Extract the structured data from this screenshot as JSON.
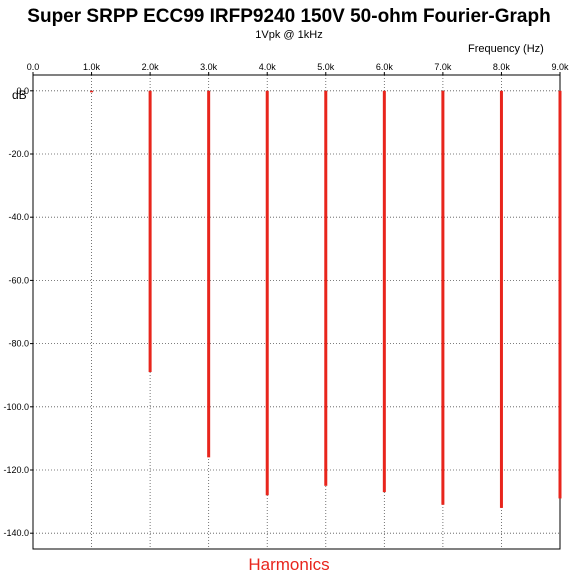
{
  "chart_data": {
    "type": "bar",
    "title": "Super SRPP ECC99 IRFP9240 150V 50-ohm Fourier-Graph",
    "subtitle": "1Vpk @ 1kHz",
    "xlabel": "Frequency  (Hz)",
    "ylabel": "dB",
    "footer": "Harmonics",
    "xlim": [
      0,
      9000
    ],
    "ylim": [
      -145,
      5
    ],
    "x_ticks": [
      0,
      1000,
      2000,
      3000,
      4000,
      5000,
      6000,
      7000,
      8000,
      9000
    ],
    "x_tick_labels": [
      "0.0",
      "1.0k",
      "2.0k",
      "3.0k",
      "4.0k",
      "5.0k",
      "6.0k",
      "7.0k",
      "8.0k",
      "9.0k"
    ],
    "y_ticks": [
      0,
      -20,
      -40,
      -60,
      -80,
      -100,
      -120,
      -140
    ],
    "y_tick_labels": [
      "0.0",
      "-20.0",
      "-40.0",
      "-60.0",
      "-80.0",
      "-100.0",
      "-120.0",
      "-140.0"
    ],
    "grid": true,
    "bar_color": "#e8251c",
    "series": [
      {
        "x": [
          1000,
          2000,
          3000,
          4000,
          5000,
          6000,
          7000,
          8000,
          9000
        ],
        "values": [
          0,
          -89,
          -116,
          -128,
          -125,
          -127,
          -131,
          -132,
          -129
        ]
      }
    ]
  }
}
